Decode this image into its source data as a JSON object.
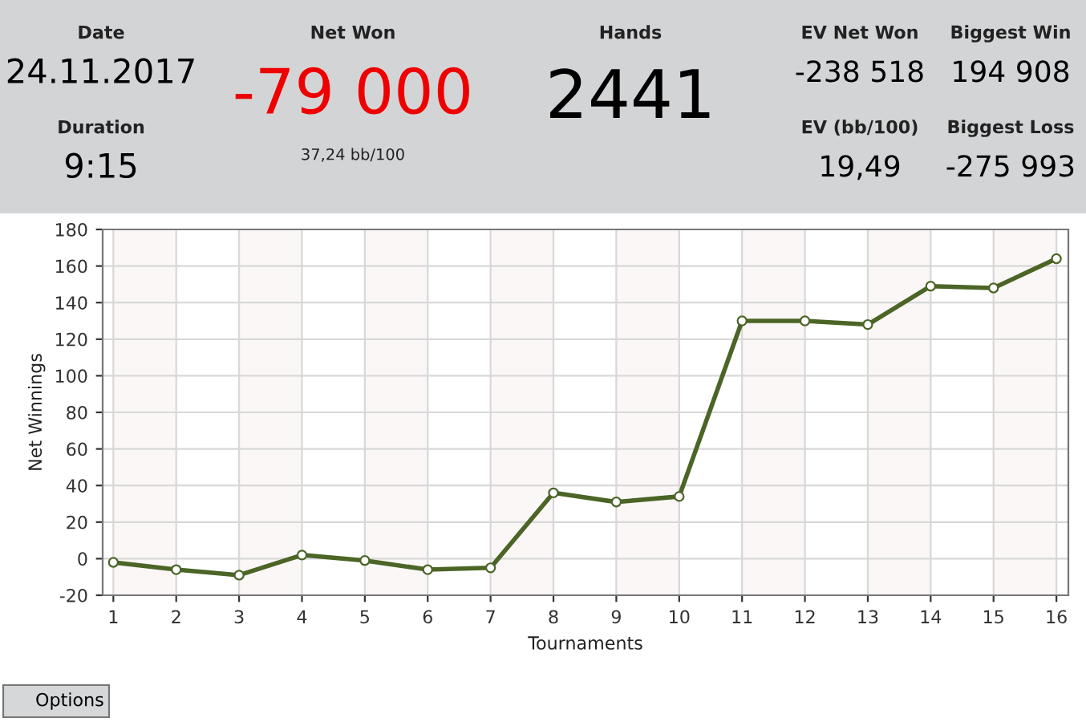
{
  "chart_data": [
    {
      "type": "other",
      "annotations": [
        "Date",
        "24.11.2017",
        "Duration",
        "9:15",
        "Net Won",
        "-79 000",
        "37,24 bb/100",
        "Hands",
        "2441",
        "EV Net Won",
        "-238 518",
        "Biggest Win",
        "194 908",
        "EV (bb/100)",
        "19,49",
        "Biggest Loss",
        "-275 993"
      ]
    },
    {
      "type": "line",
      "xlabel": "Tournaments",
      "ylabel": "Net Winnings",
      "x": [
        1,
        2,
        3,
        4,
        5,
        6,
        7,
        8,
        9,
        10,
        11,
        12,
        13,
        14,
        15,
        16
      ],
      "series": [
        {
          "color": "#4b6526",
          "values": [
            -2,
            -6,
            -9,
            2,
            -1,
            -6,
            -5,
            36,
            31,
            34,
            130,
            130,
            128,
            149,
            148,
            164
          ]
        }
      ],
      "xlim": [
        0.83,
        16.19
      ],
      "xticks": [
        1,
        2,
        3,
        4,
        5,
        6,
        7,
        8,
        9,
        10,
        11,
        12,
        13,
        14,
        15,
        16
      ],
      "ylim": [
        -20,
        180
      ],
      "yticks": [
        -20,
        0,
        20,
        40,
        60,
        80,
        100,
        120,
        140,
        160,
        180
      ],
      "grid": true,
      "marker": "circle",
      "line_style": "solid",
      "bands": [
        {
          "axis": "x",
          "from": 1,
          "to": 2,
          "color": "#fcf7f7"
        },
        {
          "axis": "x",
          "from": 3,
          "to": 4,
          "color": "#fcf7f7"
        },
        {
          "axis": "x",
          "from": 5,
          "to": 6,
          "color": "#fcf7f7"
        },
        {
          "axis": "x",
          "from": 7,
          "to": 8,
          "color": "#fcf7f7"
        },
        {
          "axis": "x",
          "from": 9,
          "to": 10,
          "color": "#fcf7f7"
        },
        {
          "axis": "x",
          "from": 11,
          "to": 12,
          "color": "#fcf7f7"
        },
        {
          "axis": "x",
          "from": 13,
          "to": 14,
          "color": "#fcf7f7"
        },
        {
          "axis": "x",
          "from": 15,
          "to": 16,
          "color": "#fcf7f7"
        }
      ],
      "annotations": [
        "Options"
      ]
    }
  ]
}
